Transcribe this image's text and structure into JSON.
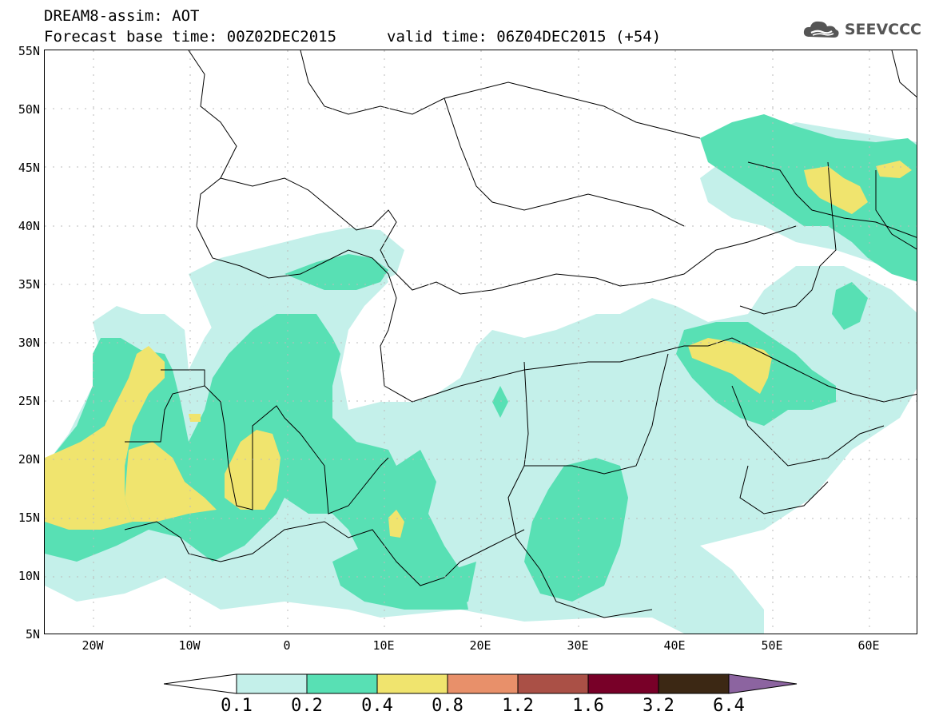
{
  "title": {
    "line1": "DREAM8-assim: AOT",
    "line2": "Forecast base time: 00Z02DEC2015",
    "valid": "valid time: 06Z04DEC2015 (+54)"
  },
  "logo": {
    "text": "SEEVCCC",
    "icon": "cloud-icon"
  },
  "map": {
    "lat_labels": [
      "55N",
      "50N",
      "45N",
      "40N",
      "35N",
      "30N",
      "25N",
      "20N",
      "15N",
      "10N",
      "5N"
    ],
    "lon_labels": [
      "20W",
      "10W",
      "0",
      "10E",
      "20E",
      "30E",
      "40E",
      "50E",
      "60E"
    ],
    "lon_range": [
      -25,
      65
    ],
    "lat_range": [
      5,
      55
    ]
  },
  "colorbar": {
    "labels": [
      "0.1",
      "0.2",
      "0.4",
      "0.8",
      "1.2",
      "1.6",
      "3.2",
      "6.4"
    ],
    "colors": [
      "#c4f0ea",
      "#58e0b4",
      "#f0e46e",
      "#e8906a",
      "#aa5046",
      "#780028",
      "#3c2814",
      "#8c64a0"
    ],
    "under_color": "#ffffff"
  },
  "legend_colors": {
    "light": "#c4f0ea",
    "green": "#58e0b4",
    "yellow": "#f0e46e"
  }
}
